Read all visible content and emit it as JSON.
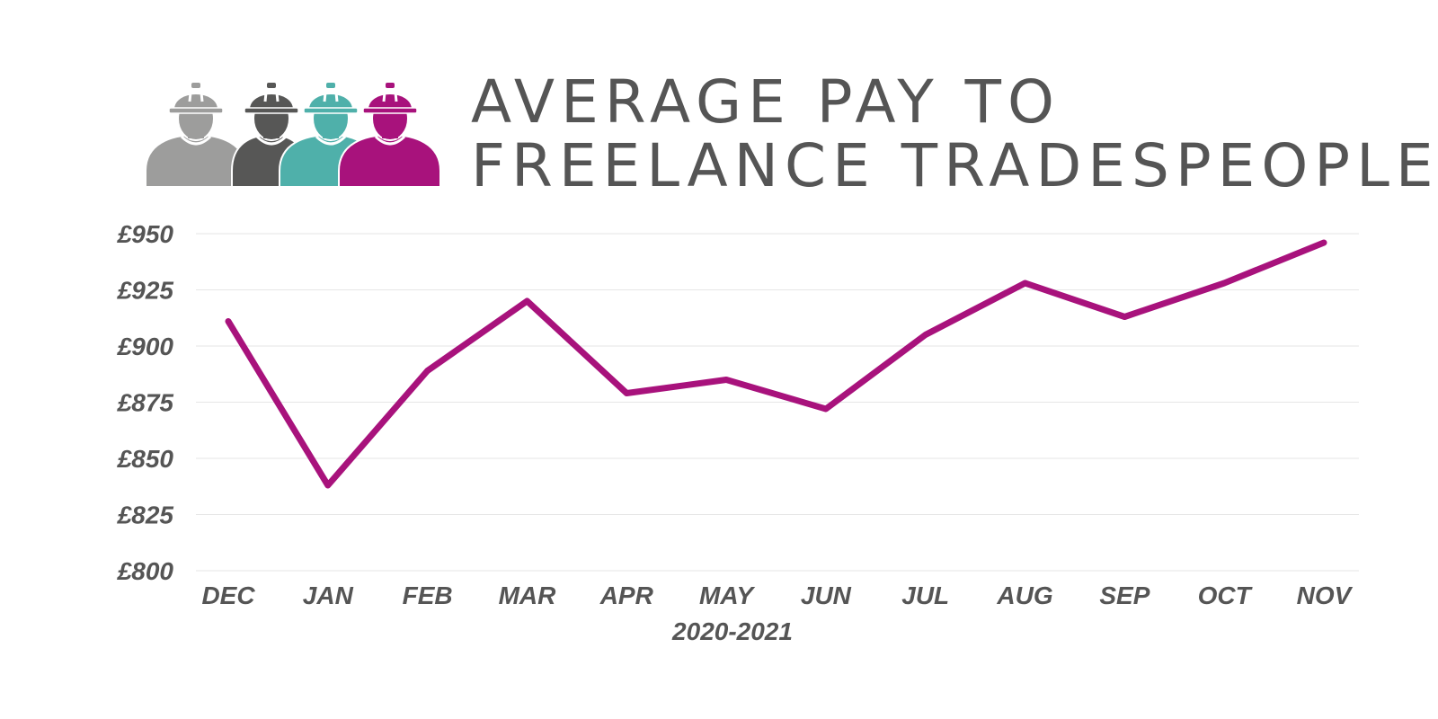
{
  "header": {
    "title_line1": "AVERAGE PAY TO",
    "title_line2": "FREELANCE TRADESPEOPLE",
    "logo": {
      "icon_name": "construction-workers-icon",
      "worker_colors": [
        "#9d9d9c",
        "#575756",
        "#4fb0aa",
        "#a8127c"
      ]
    }
  },
  "chart_data": {
    "type": "line",
    "title": "AVERAGE PAY TO FREELANCE TRADESPEOPLE",
    "xlabel": "2020-2021",
    "ylabel": "",
    "categories": [
      "DEC",
      "JAN",
      "FEB",
      "MAR",
      "APR",
      "MAY",
      "JUN",
      "JUL",
      "AUG",
      "SEP",
      "OCT",
      "NOV"
    ],
    "series": [
      {
        "values": [
          911,
          838,
          889,
          920,
          879,
          885,
          872,
          905,
          928,
          913,
          928,
          946
        ],
        "color": "#a8127c"
      }
    ],
    "ylim": [
      800,
      950
    ],
    "yticks": [
      800,
      825,
      850,
      875,
      900,
      925,
      950
    ],
    "ytick_labels": [
      "£800",
      "£825",
      "£850",
      "£875",
      "£900",
      "£925",
      "£950"
    ],
    "grid": true,
    "legend": "none"
  }
}
